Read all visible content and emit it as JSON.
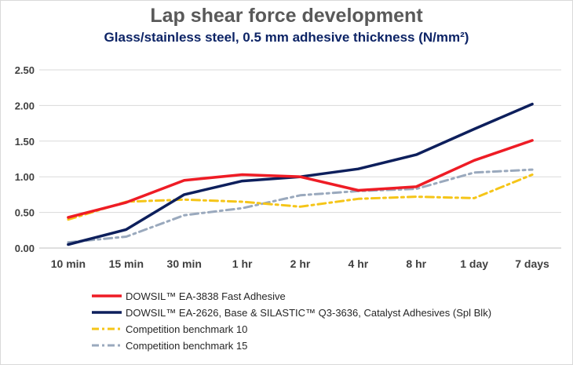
{
  "chart_data": {
    "type": "line",
    "title": "Lap shear force development",
    "subtitle": "Glass/stainless steel, 0.5 mm adhesive thickness (N/mm²)",
    "categories": [
      "10 min",
      "15 min",
      "30 min",
      "1 hr",
      "2 hr",
      "4 hr",
      "8 hr",
      "1 day",
      "7 days"
    ],
    "ylim": [
      0,
      2.5
    ],
    "yticks": [
      "0.00",
      "0.50",
      "1.00",
      "1.50",
      "2.00",
      "2.50"
    ],
    "grid": true,
    "legend_position": "bottom",
    "series": [
      {
        "name": "DOWSIL™ EA-3838 Fast Adhesive",
        "color": "#ee1c25",
        "style": "solid",
        "values": [
          0.43,
          0.64,
          0.95,
          1.03,
          1.0,
          0.81,
          0.86,
          1.23,
          1.51
        ]
      },
      {
        "name": "DOWSIL™ EA-2626, Base & SILASTIC™ Q3-3636, Catalyst Adhesives (Spl Blk)",
        "color": "#0d1f5c",
        "style": "solid",
        "values": [
          0.05,
          0.26,
          0.75,
          0.94,
          1.0,
          1.11,
          1.31,
          1.67,
          2.02
        ]
      },
      {
        "name": "Competition benchmark 10",
        "color": "#f5c518",
        "style": "dashdot",
        "values": [
          0.4,
          0.65,
          0.68,
          0.65,
          0.58,
          0.69,
          0.72,
          0.7,
          1.03
        ]
      },
      {
        "name": "Competition benchmark 15",
        "color": "#9aa9bd",
        "style": "dashdot",
        "values": [
          0.08,
          0.16,
          0.46,
          0.56,
          0.74,
          0.8,
          0.83,
          1.06,
          1.1
        ]
      }
    ]
  }
}
